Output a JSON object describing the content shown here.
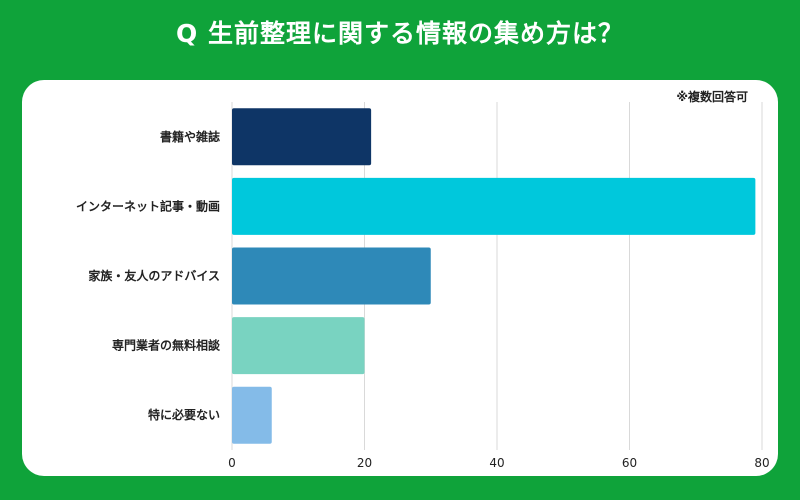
{
  "header": {
    "title": "Q 生前整理に関する情報の集め方は？"
  },
  "note": "※複数回答可",
  "chart_data": {
    "type": "bar",
    "orientation": "horizontal",
    "title": "Q 生前整理に関する情報の集め方は？",
    "categories": [
      "書籍や雑誌",
      "インターネット記事・動画",
      "家族・友人のアドバイス",
      "専門業者の無料相談",
      "特に必要ない"
    ],
    "values": [
      21,
      79,
      30,
      20,
      6
    ],
    "colors": [
      "#0e3566",
      "#00c8dc",
      "#2e89b8",
      "#79d3c1",
      "#84bbe8"
    ],
    "xlim": [
      0,
      80
    ],
    "xticks": [
      "0",
      "20",
      "40",
      "60",
      "80"
    ],
    "grid": true,
    "legend": "none"
  }
}
